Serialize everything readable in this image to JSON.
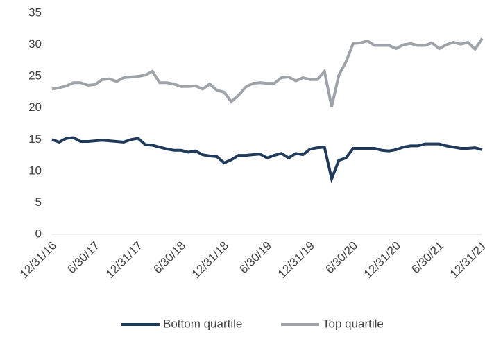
{
  "chart_data": {
    "type": "line",
    "categories": [
      "12/31/16",
      null,
      null,
      null,
      null,
      null,
      "6/30/17",
      null,
      null,
      null,
      null,
      null,
      "12/31/17",
      null,
      null,
      null,
      null,
      null,
      "6/30/18",
      null,
      null,
      null,
      null,
      null,
      "12/31/18",
      null,
      null,
      null,
      null,
      null,
      "6/30/19",
      null,
      null,
      null,
      null,
      null,
      "12/31/19",
      null,
      null,
      null,
      null,
      null,
      "6/30/20",
      null,
      null,
      null,
      null,
      null,
      "12/31/20",
      null,
      null,
      null,
      null,
      null,
      "6/30/21",
      null,
      null,
      null,
      null,
      null,
      "12/31/21"
    ],
    "series": [
      {
        "name": "Bottom quartile",
        "color": "#1f3a5a",
        "values": [
          15,
          14.6,
          15.2,
          15.3,
          14.7,
          14.7,
          14.8,
          14.9,
          14.8,
          14.7,
          14.6,
          15,
          15.2,
          14.2,
          14.1,
          13.8,
          13.5,
          13.3,
          13.3,
          13,
          13.2,
          12.6,
          12.4,
          12.3,
          11.3,
          11.8,
          12.5,
          12.5,
          12.6,
          12.7,
          12.1,
          12.5,
          12.8,
          12.1,
          12.8,
          12.6,
          13.5,
          13.7,
          13.8,
          8.8,
          11.7,
          12.1,
          13.6,
          13.6,
          13.6,
          13.6,
          13.3,
          13.2,
          13.4,
          13.8,
          14,
          14,
          14.3,
          14.3,
          14.3,
          14,
          13.8,
          13.6,
          13.6,
          13.7,
          13.4
        ]
      },
      {
        "name": "Top quartile",
        "color": "#9da3a8",
        "values": [
          23,
          23.2,
          23.5,
          24,
          24,
          23.6,
          23.7,
          24.5,
          24.6,
          24.2,
          24.8,
          24.9,
          25,
          25.2,
          25.8,
          24,
          24,
          23.8,
          23.4,
          23.4,
          23.5,
          23,
          23.8,
          22.8,
          22.5,
          21,
          22,
          23.3,
          23.9,
          24,
          23.9,
          23.9,
          24.8,
          24.9,
          24.3,
          24.8,
          24.5,
          24.5,
          25.8,
          20.2,
          25.2,
          27.3,
          30.2,
          30.3,
          30.6,
          29.9,
          29.9,
          29.9,
          29.4,
          30,
          30.2,
          29.9,
          29.9,
          30.3,
          29.4,
          30,
          30.4,
          30.1,
          30.4,
          29.3,
          31
        ]
      }
    ],
    "ylim": [
      0,
      35
    ],
    "yticks": [
      0,
      5,
      10,
      15,
      20,
      25,
      30,
      35
    ],
    "grid": false,
    "legend": "bottom"
  }
}
